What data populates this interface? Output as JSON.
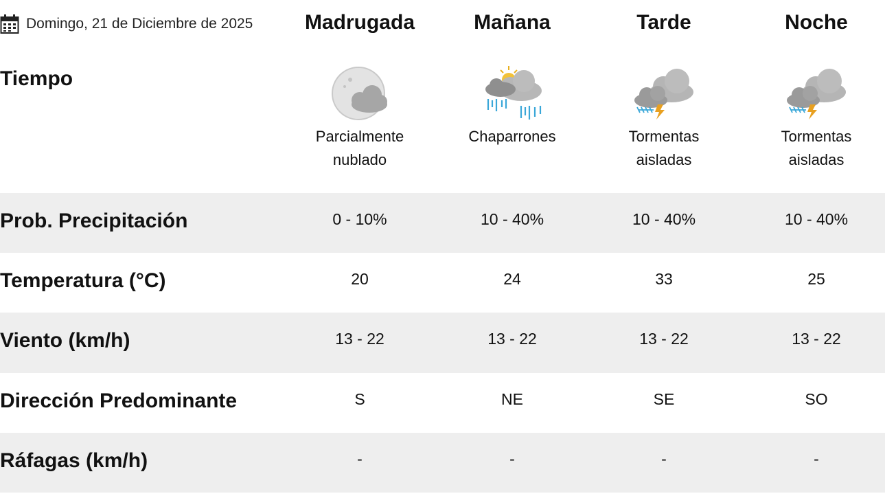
{
  "header": {
    "date": "Domingo, 21 de Diciembre de 2025",
    "columns": [
      "Madrugada",
      "Mañana",
      "Tarde",
      "Noche"
    ]
  },
  "tiempo": {
    "label": "Tiempo",
    "conditions": [
      {
        "icon": "partly-cloudy-night-icon",
        "line1": "Parcialmente",
        "line2": "nublado"
      },
      {
        "icon": "showers-icon",
        "line1": "Chaparrones",
        "line2": ""
      },
      {
        "icon": "isolated-storms-icon",
        "line1": "Tormentas",
        "line2": "aisladas"
      },
      {
        "icon": "isolated-storms-icon",
        "line1": "Tormentas",
        "line2": "aisladas"
      }
    ]
  },
  "rows": [
    {
      "label": "Prob. Precipitación",
      "values": [
        "0 - 10%",
        "10 - 40%",
        "10 - 40%",
        "10 - 40%"
      ]
    },
    {
      "label": "Temperatura (°C)",
      "values": [
        "20",
        "24",
        "33",
        "25"
      ]
    },
    {
      "label": "Viento (km/h)",
      "values": [
        "13 - 22",
        "13 - 22",
        "13 - 22",
        "13 - 22"
      ]
    },
    {
      "label": "Dirección Predominante",
      "values": [
        "S",
        "NE",
        "SE",
        "SO"
      ]
    },
    {
      "label": "Ráfagas (km/h)",
      "values": [
        "-",
        "-",
        "-",
        "-"
      ]
    }
  ],
  "colors": {
    "row_alt": "#eeeeee",
    "rain": "#3aa7d8",
    "lightning": "#e8a020",
    "cloud": "#a9a9a9"
  }
}
